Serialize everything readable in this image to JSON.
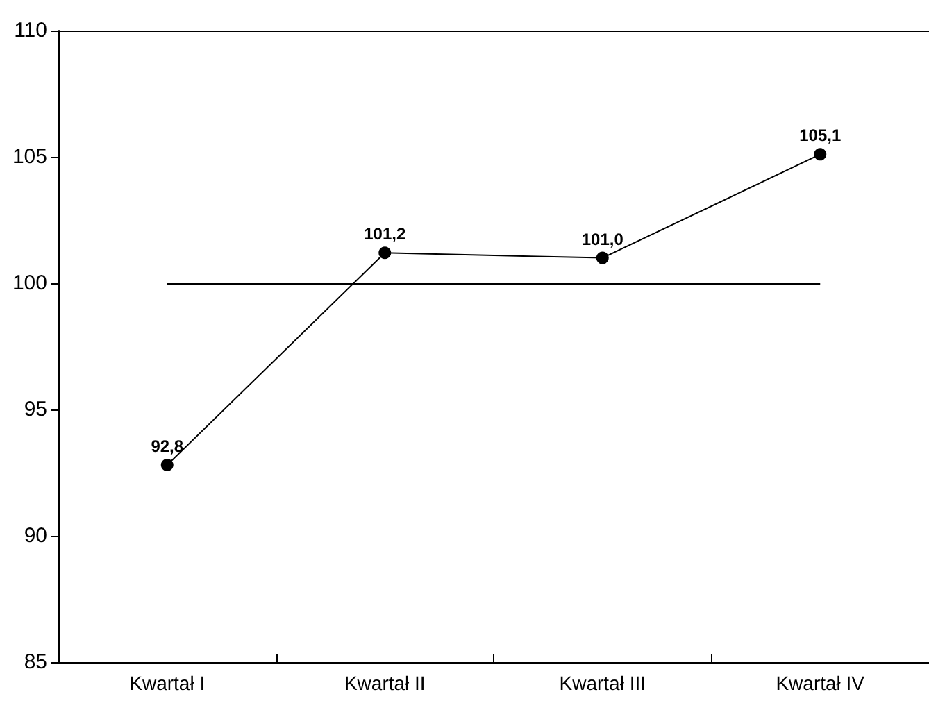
{
  "chart_data": {
    "type": "line",
    "categories": [
      "Kwartał I",
      "Kwartał II",
      "Kwartał III",
      "Kwartał IV"
    ],
    "series": [
      {
        "color": "#000000",
        "values": [
          92.8,
          101.2,
          101.0,
          105.1
        ],
        "value_labels": [
          "92,8",
          "101,2",
          "101,0",
          "105,1"
        ]
      }
    ],
    "ylim": [
      85,
      110
    ],
    "yticks": [
      85,
      90,
      95,
      100,
      105,
      110
    ],
    "grid": false,
    "marker": "circle",
    "line_style": "solid",
    "ref_lines": [
      {
        "axis": "y",
        "value": 100,
        "color": "#000000",
        "line_style": "solid"
      }
    ]
  }
}
